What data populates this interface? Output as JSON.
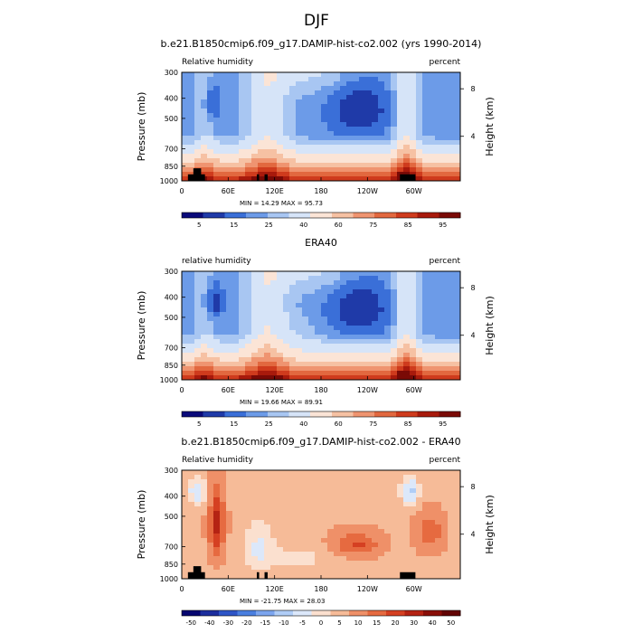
{
  "figure": {
    "title": "DJF"
  },
  "chart_data": [
    {
      "type": "heatmap",
      "title": "b.e21.B1850cmip6.f09_g17.DAMIP-hist-co2.002 (yrs 1990-2014)",
      "left_label": "Relative humidity",
      "right_label": "percent",
      "ylabel": "Pressure (mb)",
      "ylabel_right": "Height (km)",
      "x_ticks": [
        "0",
        "60E",
        "120E",
        "180",
        "120W",
        "60W"
      ],
      "y_ticks": [
        "300",
        "400",
        "500",
        "700",
        "850",
        "1000"
      ],
      "right_ticks": [
        "8",
        "4"
      ],
      "minmax": "MIN = 14.29  MAX = 95.73",
      "min": 14.29,
      "max": 95.73,
      "colorbar_labels": [
        "5",
        "15",
        "25",
        "40",
        "60",
        "75",
        "85",
        "95"
      ],
      "has_topography": true
    },
    {
      "type": "heatmap",
      "title": "ERA40",
      "left_label": "relative humidity",
      "right_label": "percent",
      "ylabel": "Pressure (mb)",
      "ylabel_right": "Height (km)",
      "x_ticks": [
        "0",
        "60E",
        "120E",
        "180",
        "120W",
        "60W"
      ],
      "y_ticks": [
        "300",
        "400",
        "500",
        "700",
        "850",
        "1000"
      ],
      "right_ticks": [
        "8",
        "4"
      ],
      "minmax": "MIN = 19.66  MAX = 89.91",
      "min": 19.66,
      "max": 89.91,
      "colorbar_labels": [
        "5",
        "15",
        "25",
        "40",
        "60",
        "75",
        "85",
        "95"
      ],
      "has_topography": false
    },
    {
      "type": "heatmap",
      "title": "b.e21.B1850cmip6.f09_g17.DAMIP-hist-co2.002 - ERA40",
      "left_label": "Relative humidity",
      "right_label": "percent",
      "ylabel": "Pressure (mb)",
      "ylabel_right": "Height (km)",
      "x_ticks": [
        "0",
        "60E",
        "120E",
        "180",
        "120W",
        "60W"
      ],
      "y_ticks": [
        "300",
        "400",
        "500",
        "700",
        "850",
        "1000"
      ],
      "right_ticks": [
        "8",
        "4"
      ],
      "minmax": "MIN = -21.75  MAX = 28.03",
      "min": -21.75,
      "max": 28.03,
      "colorbar_labels": [
        "-50",
        "-40",
        "-30",
        "-20",
        "-15",
        "-10",
        "-5",
        "0",
        "5",
        "10",
        "15",
        "20",
        "30",
        "40",
        "50"
      ],
      "has_topography": true
    }
  ]
}
